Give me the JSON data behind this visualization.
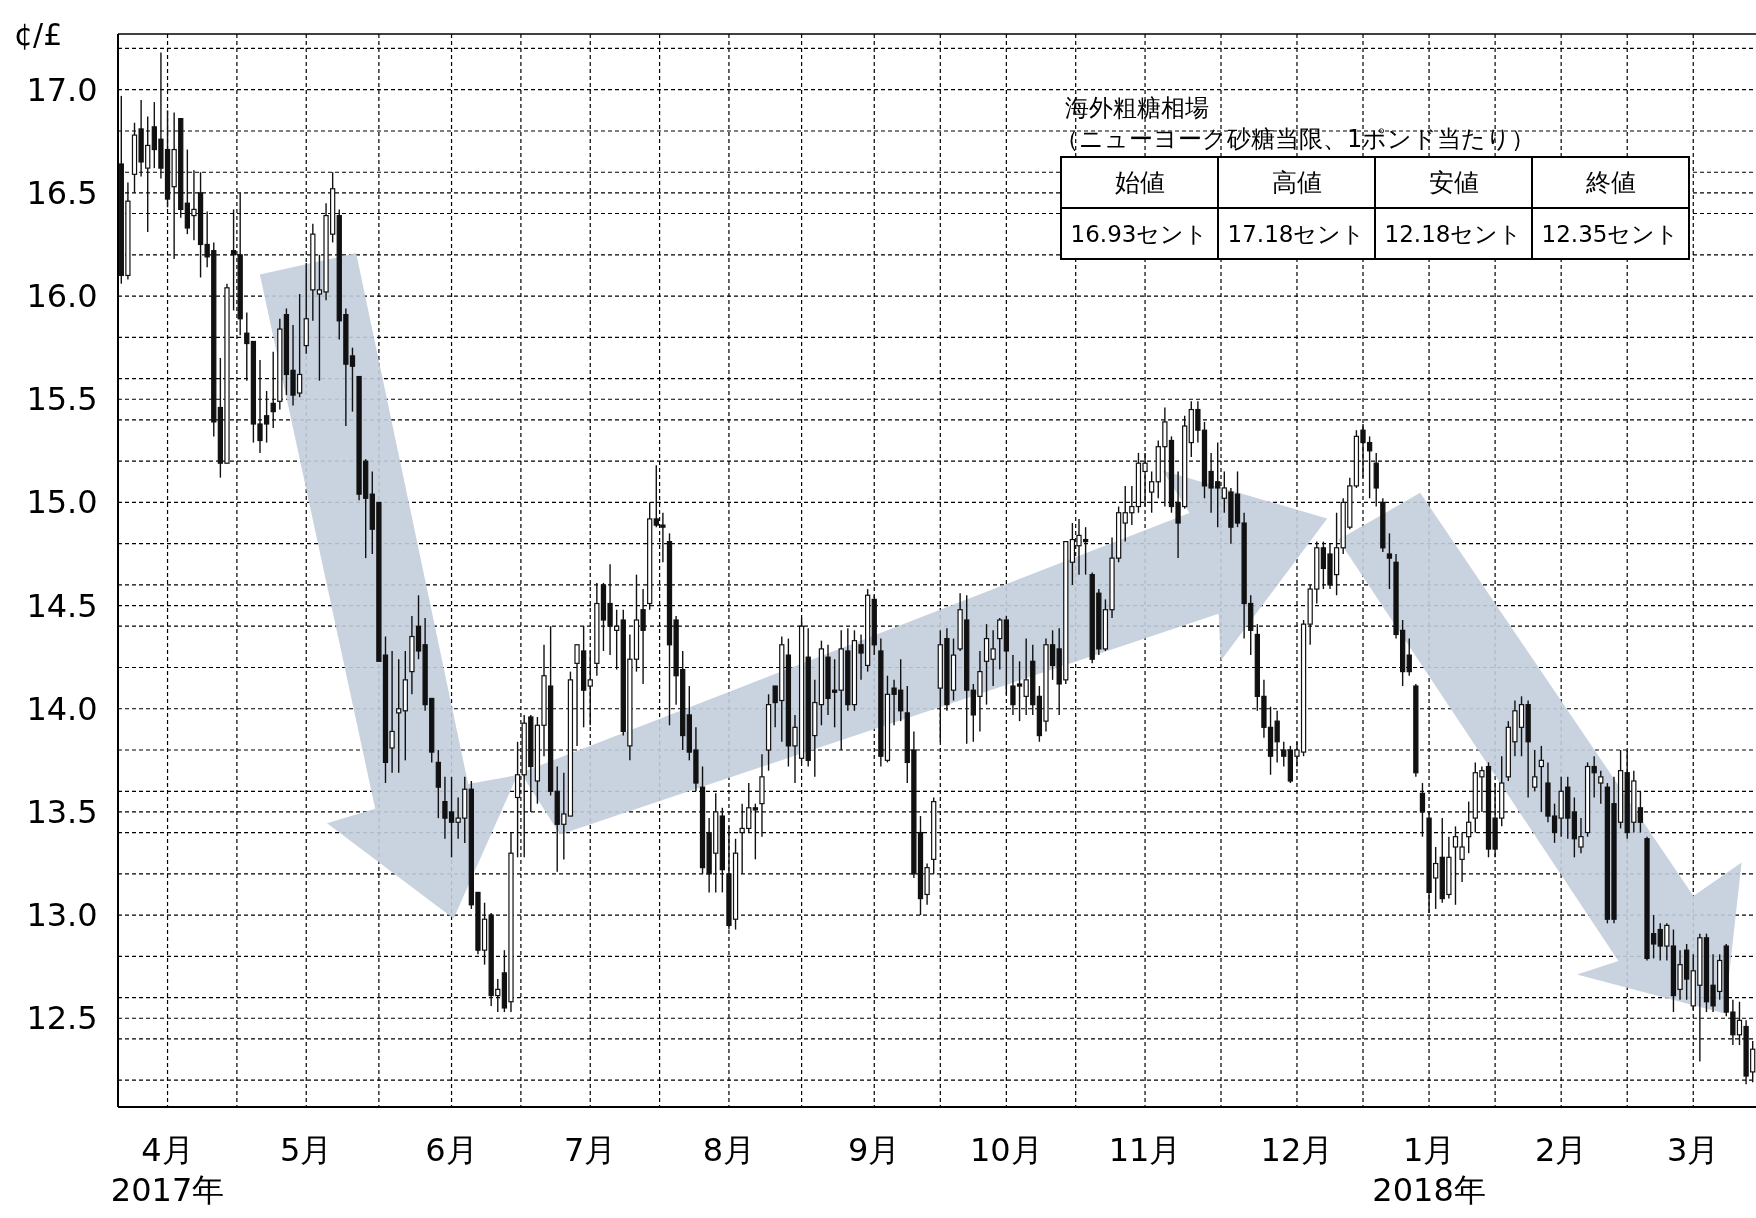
{
  "chart_data": {
    "type": "candlestick",
    "ylabel": "¢/£",
    "annotations": [
      "海外粗糖相場",
      "（ニューヨーク砂糖当限、1ポンド当たり）",
      "始値",
      "高値",
      "安値",
      "終値",
      "16.93セント",
      "17.18セント",
      "12.18セント",
      "12.35セント"
    ],
    "ylim": [
      12.07,
      17.27
    ],
    "yticks": [
      {
        "value": 12.2,
        "label": null
      },
      {
        "value": 12.4,
        "label": null
      },
      {
        "value": 12.5,
        "label": "12.5"
      },
      {
        "value": 12.6,
        "label": null
      },
      {
        "value": 12.8,
        "label": null
      },
      {
        "value": 13.0,
        "label": "13.0"
      },
      {
        "value": 13.2,
        "label": null
      },
      {
        "value": 13.4,
        "label": null
      },
      {
        "value": 13.5,
        "label": "13.5"
      },
      {
        "value": 13.6,
        "label": null
      },
      {
        "value": 13.8,
        "label": null
      },
      {
        "value": 14.0,
        "label": "14.0"
      },
      {
        "value": 14.2,
        "label": null
      },
      {
        "value": 14.4,
        "label": null
      },
      {
        "value": 14.5,
        "label": "14.5"
      },
      {
        "value": 14.6,
        "label": null
      },
      {
        "value": 14.8,
        "label": null
      },
      {
        "value": 15.0,
        "label": "15.0"
      },
      {
        "value": 15.2,
        "label": null
      },
      {
        "value": 15.4,
        "label": null
      },
      {
        "value": 15.5,
        "label": "15.5"
      },
      {
        "value": 15.6,
        "label": null
      },
      {
        "value": 15.8,
        "label": null
      },
      {
        "value": 16.0,
        "label": "16.0"
      },
      {
        "value": 16.2,
        "label": null
      },
      {
        "value": 16.4,
        "label": null
      },
      {
        "value": 16.5,
        "label": "16.5"
      },
      {
        "value": 16.6,
        "label": null
      },
      {
        "value": 16.8,
        "label": null
      },
      {
        "value": 17.0,
        "label": "17.0"
      },
      {
        "value": 17.2,
        "label": null
      }
    ],
    "grid": true,
    "categories": [
      null,
      null,
      null,
      null,
      null,
      null,
      null,
      "4月\n2017年",
      null,
      null,
      null,
      null,
      null,
      null,
      null,
      null,
      null,
      null,
      null,
      null,
      null,
      null,
      null,
      null,
      null,
      null,
      null,
      null,
      "5月",
      null,
      null,
      null,
      null,
      null,
      null,
      null,
      null,
      null,
      null,
      null,
      null,
      null,
      null,
      null,
      null,
      null,
      null,
      null,
      null,
      null,
      "6月",
      null,
      null,
      null,
      null,
      null,
      null,
      null,
      null,
      null,
      null,
      null,
      null,
      null,
      null,
      null,
      null,
      null,
      null,
      null,
      null,
      "7月",
      null,
      null,
      null,
      null,
      null,
      null,
      null,
      null,
      null,
      null,
      null,
      null,
      null,
      null,
      null,
      null,
      null,
      null,
      null,
      null,
      "8月",
      null,
      null,
      null,
      null,
      null,
      null,
      null,
      null,
      null,
      null,
      null,
      null,
      null,
      null,
      null,
      null,
      null,
      null,
      null,
      null,
      null,
      "9月",
      null,
      null,
      null,
      null,
      null,
      null,
      null,
      null,
      null,
      null,
      null,
      null,
      null,
      null,
      null,
      null,
      null,
      null,
      null,
      "10月",
      null,
      null,
      null,
      null,
      null,
      null,
      null,
      null,
      null,
      null,
      null,
      null,
      null,
      null,
      null,
      null,
      null,
      null,
      null,
      null,
      "11月",
      null,
      null,
      null,
      null,
      null,
      null,
      null,
      null,
      null,
      null,
      null,
      null,
      null,
      null,
      null,
      null,
      null,
      null,
      null,
      null,
      null,
      null,
      "12月",
      null,
      null,
      null,
      null,
      null,
      null,
      null,
      null,
      null,
      null,
      null,
      null,
      null,
      null,
      null,
      null,
      null,
      null,
      null,
      "1月\n2018年",
      null,
      null,
      null,
      null,
      null,
      null,
      null,
      null,
      null,
      null,
      null,
      null,
      null,
      null,
      null,
      null,
      null,
      null,
      null,
      "2月",
      null,
      null,
      null,
      null,
      null,
      null,
      null,
      null,
      null,
      null,
      null,
      null,
      null,
      null,
      null,
      null,
      null,
      null,
      null,
      "3月",
      null,
      null,
      null,
      null,
      null,
      null,
      null,
      null,
      null
    ],
    "ohlc": [
      [
        16.64,
        16.97,
        16.06,
        16.1
      ],
      [
        16.1,
        16.55,
        16.08,
        16.46
      ],
      [
        16.59,
        16.84,
        16.5,
        16.78
      ],
      [
        16.81,
        16.95,
        16.58,
        16.65
      ],
      [
        16.62,
        16.87,
        16.31,
        16.73
      ],
      [
        16.82,
        16.94,
        16.62,
        16.71
      ],
      [
        16.76,
        17.18,
        16.57,
        16.62
      ],
      [
        16.71,
        16.9,
        16.43,
        16.47
      ],
      [
        16.53,
        16.89,
        16.18,
        16.71
      ],
      [
        16.86,
        16.86,
        16.38,
        16.42
      ],
      [
        16.45,
        16.71,
        16.3,
        16.33
      ],
      [
        16.39,
        16.61,
        16.27,
        16.42
      ],
      [
        16.5,
        16.6,
        16.09,
        16.25
      ],
      [
        16.25,
        16.41,
        16.14,
        16.19
      ],
      [
        16.22,
        16.26,
        15.32,
        15.39
      ],
      [
        15.46,
        15.7,
        15.12,
        15.19
      ],
      [
        15.19,
        16.06,
        15.19,
        16.04
      ],
      [
        16.22,
        16.42,
        15.93,
        16.2
      ],
      [
        16.2,
        16.5,
        15.81,
        15.89
      ],
      [
        15.82,
        15.92,
        15.59,
        15.77
      ],
      [
        15.78,
        15.78,
        15.29,
        15.38
      ],
      [
        15.38,
        15.69,
        15.24,
        15.3
      ],
      [
        15.42,
        15.54,
        15.29,
        15.38
      ],
      [
        15.48,
        15.73,
        15.36,
        15.44
      ],
      [
        15.49,
        15.89,
        15.45,
        15.84
      ],
      [
        15.91,
        15.94,
        15.52,
        15.62
      ],
      [
        15.64,
        15.86,
        15.47,
        15.52
      ],
      [
        15.53,
        16.01,
        15.51,
        15.62
      ],
      [
        15.76,
        16.16,
        15.72,
        15.89
      ],
      [
        16.03,
        16.35,
        15.88,
        16.3
      ],
      [
        16.01,
        16.2,
        15.59,
        16.03
      ],
      [
        16.02,
        16.45,
        15.98,
        16.39
      ],
      [
        16.3,
        16.6,
        16.26,
        16.52
      ],
      [
        16.39,
        16.42,
        15.79,
        15.88
      ],
      [
        15.91,
        15.94,
        15.37,
        15.67
      ],
      [
        15.71,
        15.75,
        15.44,
        15.66
      ],
      [
        15.61,
        15.61,
        15.01,
        15.04
      ],
      [
        15.2,
        15.21,
        14.73,
        15.02
      ],
      [
        15.04,
        15.15,
        14.75,
        14.87
      ],
      [
        15.0,
        15.0,
        14.23,
        14.23
      ],
      [
        14.26,
        14.35,
        13.64,
        13.74
      ],
      [
        13.81,
        14.28,
        13.69,
        13.89
      ],
      [
        13.98,
        14.24,
        13.69,
        14.0
      ],
      [
        13.99,
        14.28,
        13.75,
        14.14
      ],
      [
        14.18,
        14.45,
        14.07,
        14.35
      ],
      [
        14.4,
        14.55,
        14.24,
        14.28
      ],
      [
        14.31,
        14.44,
        13.99,
        14.02
      ],
      [
        14.05,
        14.05,
        13.74,
        13.79
      ],
      [
        13.74,
        13.8,
        13.47,
        13.62
      ],
      [
        13.55,
        13.67,
        13.37,
        13.47
      ],
      [
        13.5,
        13.67,
        13.28,
        13.45
      ],
      [
        13.45,
        13.57,
        13.37,
        13.47
      ],
      [
        13.47,
        13.67,
        13.35,
        13.61
      ],
      [
        13.61,
        13.65,
        13.03,
        13.05
      ],
      [
        13.11,
        13.11,
        12.81,
        12.83
      ],
      [
        12.83,
        13.06,
        12.76,
        12.98
      ],
      [
        13.0,
        13.01,
        12.56,
        12.61
      ],
      [
        12.61,
        12.69,
        12.53,
        12.64
      ],
      [
        12.72,
        12.83,
        12.53,
        12.55
      ],
      [
        12.58,
        13.4,
        12.53,
        13.3
      ],
      [
        13.57,
        13.84,
        13.28,
        13.68
      ],
      [
        13.68,
        13.97,
        13.28,
        13.93
      ],
      [
        13.96,
        13.97,
        13.5,
        13.72
      ],
      [
        13.65,
        13.96,
        13.54,
        13.92
      ],
      [
        13.92,
        14.31,
        13.77,
        14.16
      ],
      [
        14.11,
        14.4,
        13.58,
        13.6
      ],
      [
        13.6,
        13.72,
        13.21,
        13.44
      ],
      [
        13.44,
        13.69,
        13.27,
        13.49
      ],
      [
        13.48,
        14.18,
        13.48,
        14.14
      ],
      [
        14.22,
        14.31,
        13.82,
        14.31
      ],
      [
        14.28,
        14.4,
        13.91,
        14.09
      ],
      [
        14.11,
        14.28,
        13.92,
        14.14
      ],
      [
        14.22,
        14.61,
        14.16,
        14.51
      ],
      [
        14.6,
        14.61,
        14.28,
        14.43
      ],
      [
        14.51,
        14.7,
        14.26,
        14.4
      ],
      [
        14.38,
        14.48,
        14.19,
        14.4
      ],
      [
        14.43,
        14.48,
        13.87,
        13.89
      ],
      [
        13.82,
        14.36,
        13.75,
        14.24
      ],
      [
        14.24,
        14.65,
        14.18,
        14.43
      ],
      [
        14.48,
        14.58,
        14.12,
        14.38
      ],
      [
        14.51,
        15.0,
        14.48,
        14.92
      ],
      [
        14.92,
        15.18,
        14.88,
        14.89
      ],
      [
        14.89,
        14.95,
        14.71,
        14.88
      ],
      [
        14.81,
        14.85,
        13.92,
        14.31
      ],
      [
        14.43,
        14.45,
        14.02,
        14.16
      ],
      [
        14.19,
        14.28,
        13.8,
        13.87
      ],
      [
        13.97,
        14.11,
        13.75,
        13.79
      ],
      [
        13.8,
        13.91,
        13.6,
        13.64
      ],
      [
        13.62,
        13.72,
        13.2,
        13.23
      ],
      [
        13.4,
        13.47,
        13.11,
        13.2
      ],
      [
        13.3,
        13.59,
        13.11,
        13.5
      ],
      [
        13.48,
        13.52,
        13.11,
        13.22
      ],
      [
        13.2,
        13.43,
        12.93,
        12.95
      ],
      [
        12.98,
        13.37,
        12.93,
        13.3
      ],
      [
        13.4,
        13.54,
        13.2,
        13.42
      ],
      [
        13.42,
        13.64,
        13.4,
        13.52
      ],
      [
        13.52,
        13.54,
        13.27,
        13.51
      ],
      [
        13.54,
        13.78,
        13.38,
        13.67
      ],
      [
        13.8,
        14.07,
        13.7,
        14.02
      ],
      [
        14.11,
        14.11,
        13.91,
        14.03
      ],
      [
        14.04,
        14.35,
        13.84,
        14.31
      ],
      [
        14.26,
        14.34,
        13.72,
        13.82
      ],
      [
        13.82,
        13.97,
        13.64,
        13.91
      ],
      [
        13.76,
        14.44,
        13.74,
        14.4
      ],
      [
        14.25,
        14.39,
        13.72,
        13.75
      ],
      [
        13.87,
        14.14,
        13.67,
        14.03
      ],
      [
        14.02,
        14.33,
        13.92,
        14.29
      ],
      [
        14.25,
        14.31,
        13.97,
        14.05
      ],
      [
        14.09,
        14.24,
        13.91,
        14.08
      ],
      [
        14.09,
        14.38,
        13.8,
        14.29
      ],
      [
        14.28,
        14.39,
        13.99,
        14.02
      ],
      [
        14.02,
        14.38,
        13.99,
        14.33
      ],
      [
        14.31,
        14.36,
        14.14,
        14.27
      ],
      [
        14.21,
        14.58,
        14.18,
        14.55
      ],
      [
        14.53,
        14.55,
        14.26,
        14.31
      ],
      [
        14.28,
        14.34,
        13.72,
        13.77
      ],
      [
        13.75,
        14.16,
        13.74,
        14.07
      ],
      [
        14.1,
        14.14,
        13.92,
        14.07
      ],
      [
        14.09,
        14.24,
        13.94,
        13.99
      ],
      [
        13.98,
        14.11,
        13.64,
        13.74
      ],
      [
        13.8,
        13.89,
        13.18,
        13.2
      ],
      [
        13.4,
        13.48,
        13.0,
        13.08
      ],
      [
        13.1,
        13.25,
        13.05,
        13.23
      ],
      [
        13.27,
        13.57,
        13.2,
        13.55
      ],
      [
        14.1,
        14.38,
        13.84,
        14.31
      ],
      [
        14.34,
        14.39,
        13.99,
        14.02
      ],
      [
        14.09,
        14.34,
        14.04,
        14.26
      ],
      [
        14.29,
        14.56,
        14.28,
        14.48
      ],
      [
        14.43,
        14.55,
        13.83,
        14.09
      ],
      [
        14.09,
        14.12,
        13.84,
        13.97
      ],
      [
        14.06,
        14.28,
        13.89,
        14.18
      ],
      [
        14.23,
        14.41,
        14.02,
        14.34
      ],
      [
        14.24,
        14.38,
        14.11,
        14.29
      ],
      [
        14.34,
        14.44,
        14.19,
        14.43
      ],
      [
        14.43,
        14.45,
        14.07,
        14.28
      ],
      [
        14.11,
        14.26,
        13.97,
        14.02
      ],
      [
        14.12,
        14.23,
        13.94,
        14.11
      ],
      [
        14.06,
        14.34,
        13.97,
        14.14
      ],
      [
        14.23,
        14.31,
        13.97,
        14.02
      ],
      [
        14.06,
        14.11,
        13.84,
        13.87
      ],
      [
        13.94,
        14.34,
        13.89,
        14.31
      ],
      [
        14.31,
        14.38,
        14.14,
        14.21
      ],
      [
        14.29,
        14.39,
        13.97,
        14.12
      ],
      [
        14.14,
        14.81,
        14.12,
        14.81
      ],
      [
        14.71,
        14.9,
        14.6,
        14.82
      ],
      [
        14.79,
        14.92,
        14.65,
        14.84
      ],
      [
        14.82,
        14.88,
        14.65,
        14.81
      ],
      [
        14.65,
        14.66,
        14.22,
        14.24
      ],
      [
        14.56,
        14.58,
        14.26,
        14.29
      ],
      [
        14.29,
        14.53,
        14.28,
        14.48
      ],
      [
        14.48,
        14.83,
        14.44,
        14.73
      ],
      [
        14.73,
        14.98,
        14.71,
        14.95
      ],
      [
        14.9,
        15.08,
        14.81,
        14.95
      ],
      [
        14.95,
        15.08,
        14.89,
        14.98
      ],
      [
        14.98,
        15.24,
        14.95,
        15.19
      ],
      [
        15.15,
        15.24,
        14.98,
        15.19
      ],
      [
        15.05,
        15.15,
        14.95,
        15.1
      ],
      [
        15.1,
        15.3,
        15.02,
        15.27
      ],
      [
        15.27,
        15.46,
        14.98,
        15.39
      ],
      [
        15.3,
        15.32,
        14.95,
        14.98
      ],
      [
        15.0,
        15.15,
        14.73,
        14.9
      ],
      [
        14.98,
        15.42,
        14.97,
        15.37
      ],
      [
        15.29,
        15.49,
        15.22,
        15.45
      ],
      [
        15.45,
        15.49,
        15.29,
        15.35
      ],
      [
        15.35,
        15.39,
        15.02,
        15.08
      ],
      [
        15.15,
        15.24,
        14.95,
        15.07
      ],
      [
        15.1,
        15.29,
        14.88,
        15.07
      ],
      [
        15.02,
        15.15,
        14.95,
        15.07
      ],
      [
        15.05,
        15.07,
        14.8,
        14.88
      ],
      [
        15.04,
        15.15,
        14.88,
        14.9
      ],
      [
        14.9,
        14.95,
        14.34,
        14.51
      ],
      [
        14.51,
        14.55,
        14.26,
        14.38
      ],
      [
        14.36,
        14.41,
        13.99,
        14.06
      ],
      [
        14.06,
        14.14,
        13.86,
        13.91
      ],
      [
        13.91,
        14.01,
        13.68,
        13.77
      ],
      [
        13.94,
        13.99,
        13.74,
        13.84
      ],
      [
        13.8,
        13.84,
        13.72,
        13.77
      ],
      [
        13.8,
        13.82,
        13.64,
        13.65
      ],
      [
        13.77,
        13.84,
        13.72,
        13.8
      ],
      [
        13.79,
        14.43,
        13.77,
        14.41
      ],
      [
        14.41,
        14.6,
        14.31,
        14.58
      ],
      [
        14.58,
        14.81,
        14.51,
        14.78
      ],
      [
        14.78,
        14.81,
        14.58,
        14.68
      ],
      [
        14.75,
        14.8,
        14.58,
        14.6
      ],
      [
        14.65,
        14.95,
        14.55,
        14.78
      ],
      [
        14.78,
        15.02,
        14.75,
        15.0
      ],
      [
        14.88,
        15.12,
        14.87,
        15.08
      ],
      [
        15.08,
        15.35,
        15.07,
        15.32
      ],
      [
        15.35,
        15.38,
        15.12,
        15.29
      ],
      [
        15.29,
        15.32,
        15.02,
        15.25
      ],
      [
        15.19,
        15.24,
        14.98,
        15.07
      ],
      [
        15.0,
        15.02,
        14.76,
        14.78
      ],
      [
        14.75,
        14.85,
        14.58,
        14.73
      ],
      [
        14.71,
        14.75,
        14.34,
        14.36
      ],
      [
        14.38,
        14.43,
        14.11,
        14.18
      ],
      [
        14.26,
        14.34,
        14.16,
        14.18
      ],
      [
        14.11,
        14.12,
        13.67,
        13.69
      ],
      [
        13.59,
        13.64,
        13.38,
        13.5
      ],
      [
        13.47,
        13.5,
        13.01,
        13.11
      ],
      [
        13.18,
        13.33,
        13.03,
        13.25
      ],
      [
        13.28,
        13.47,
        13.06,
        13.08
      ],
      [
        13.1,
        13.38,
        13.08,
        13.28
      ],
      [
        13.33,
        13.43,
        13.05,
        13.38
      ],
      [
        13.27,
        13.4,
        13.16,
        13.33
      ],
      [
        13.38,
        13.55,
        13.3,
        13.45
      ],
      [
        13.47,
        13.74,
        13.4,
        13.69
      ],
      [
        13.67,
        13.72,
        13.5,
        13.7
      ],
      [
        13.72,
        13.74,
        13.28,
        13.32
      ],
      [
        13.47,
        13.64,
        13.28,
        13.32
      ],
      [
        13.47,
        13.77,
        13.43,
        13.64
      ],
      [
        13.67,
        13.94,
        13.65,
        13.91
      ],
      [
        13.84,
        14.04,
        13.77,
        13.99
      ],
      [
        13.91,
        14.06,
        13.77,
        14.02
      ],
      [
        14.02,
        14.04,
        13.57,
        13.84
      ],
      [
        13.62,
        13.8,
        13.6,
        13.67
      ],
      [
        13.72,
        13.82,
        13.5,
        13.75
      ],
      [
        13.64,
        13.74,
        13.45,
        13.48
      ],
      [
        13.48,
        13.54,
        13.35,
        13.4
      ],
      [
        13.47,
        13.67,
        13.38,
        13.6
      ],
      [
        13.62,
        13.67,
        13.37,
        13.47
      ],
      [
        13.5,
        13.57,
        13.28,
        13.37
      ],
      [
        13.33,
        13.47,
        13.3,
        13.38
      ],
      [
        13.4,
        13.74,
        13.38,
        13.72
      ],
      [
        13.72,
        13.77,
        13.57,
        13.69
      ],
      [
        13.64,
        13.7,
        13.54,
        13.67
      ],
      [
        13.62,
        13.64,
        12.96,
        12.98
      ],
      [
        13.54,
        13.67,
        12.96,
        12.98
      ],
      [
        13.45,
        13.8,
        13.42,
        13.7
      ],
      [
        13.69,
        13.8,
        13.37,
        13.4
      ],
      [
        13.45,
        13.7,
        13.4,
        13.65
      ],
      [
        13.52,
        13.6,
        13.4,
        13.45
      ],
      [
        13.37,
        13.38,
        12.78,
        12.79
      ],
      [
        12.91,
        13.0,
        12.79,
        12.86
      ],
      [
        12.93,
        12.96,
        12.78,
        12.85
      ],
      [
        12.85,
        12.96,
        12.78,
        12.95
      ],
      [
        12.85,
        12.93,
        12.53,
        12.61
      ],
      [
        12.64,
        12.83,
        12.59,
        12.76
      ],
      [
        12.83,
        12.86,
        12.59,
        12.69
      ],
      [
        12.56,
        12.81,
        12.54,
        12.73
      ],
      [
        12.66,
        12.91,
        12.29,
        12.89
      ],
      [
        12.89,
        12.91,
        12.53,
        12.58
      ],
      [
        12.66,
        12.81,
        12.53,
        12.56
      ],
      [
        12.63,
        12.81,
        12.59,
        12.78
      ],
      [
        12.85,
        12.86,
        12.51,
        12.53
      ],
      [
        12.53,
        12.59,
        12.37,
        12.42
      ],
      [
        12.42,
        12.58,
        12.37,
        12.49
      ],
      [
        12.46,
        12.49,
        12.18,
        12.22
      ],
      [
        12.24,
        12.39,
        12.19,
        12.35
      ]
    ]
  }
}
